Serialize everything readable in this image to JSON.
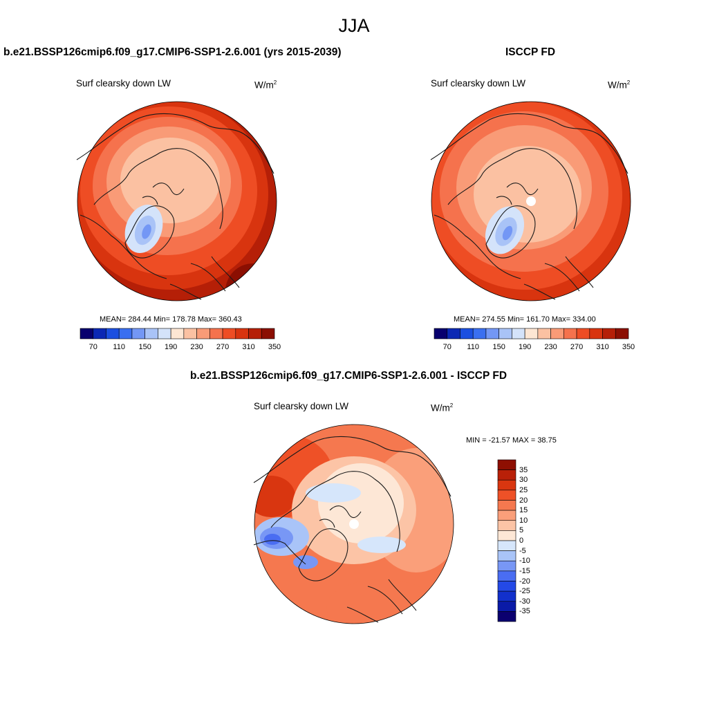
{
  "page_title": "JJA",
  "colors": {
    "model_levels": [
      "#08006e",
      "#0b28b4",
      "#1b4fe0",
      "#3a6ff0",
      "#7397f5",
      "#a9c3f7",
      "#d4e3fa",
      "#fde6d3",
      "#fbc1a2",
      "#f99b77",
      "#f5724d",
      "#ee4d24",
      "#d8340f",
      "#b51f07",
      "#8b0f02"
    ],
    "diff_levels": [
      "#0b006f",
      "#0a1aa7",
      "#1230cc",
      "#2449e6",
      "#4a6df2",
      "#7897f5",
      "#a9c4f8",
      "#d6e6fb",
      "#fde7d6",
      "#fcc4a6",
      "#fa9f7a",
      "#f5784f",
      "#ee5127",
      "#d93610",
      "#b92008",
      "#8e0f02"
    ],
    "coast": "#1a1a1a"
  },
  "panels": [
    {
      "id": "model",
      "title": "b.e21.BSSP126cmip6.f09_g17.CMIP6-SSP1-2.6.001 (yrs 2015-2039)",
      "variable": "Surf clearsky down LW",
      "units": "W/m",
      "units_exp": "2",
      "stats": "MEAN= 284.44  Min= 178.78  Max= 360.43",
      "colorbar_ticks": [
        "70",
        "110",
        "150",
        "190",
        "230",
        "270",
        "310",
        "350"
      ]
    },
    {
      "id": "obs",
      "title": "ISCCP FD",
      "variable": "Surf clearsky down LW",
      "units": "W/m",
      "units_exp": "2",
      "stats": "MEAN= 274.55  Min= 161.70  Max= 334.00",
      "colorbar_ticks": [
        "70",
        "110",
        "150",
        "190",
        "230",
        "270",
        "310",
        "350"
      ]
    },
    {
      "id": "diff",
      "title": "b.e21.BSSP126cmip6.f09_g17.CMIP6-SSP1-2.6.001 - ISCCP FD",
      "variable": "Surf clearsky down LW",
      "units": "W/m",
      "units_exp": "2",
      "stats": "MIN = -21.57 MAX =  38.75",
      "colorbar_ticks": [
        "35",
        "30",
        "25",
        "20",
        "15",
        "10",
        "5",
        "0",
        "-5",
        "-10",
        "-15",
        "-20",
        "-25",
        "-30",
        "-35"
      ]
    }
  ]
}
